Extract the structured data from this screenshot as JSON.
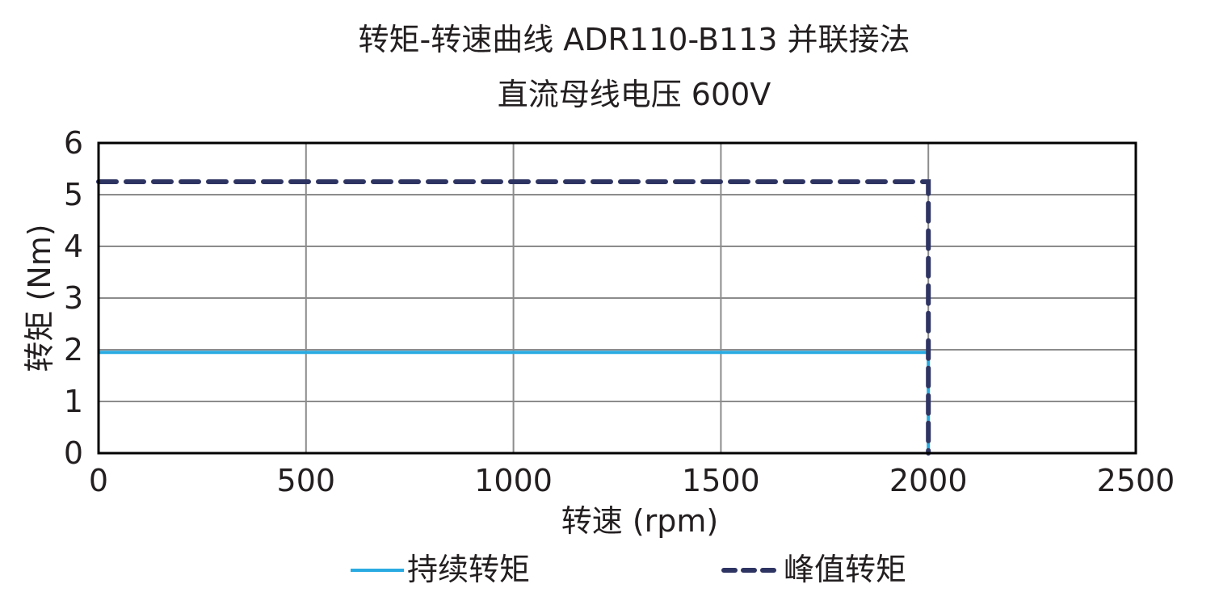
{
  "chart_data": {
    "type": "line",
    "title": "转矩-转速曲线 ADR110-B113 并联接法",
    "subtitle": "直流母线电压 600V",
    "xlabel": "转速 (rpm)",
    "ylabel": "转矩 (Nm)",
    "xlim": [
      0,
      2500
    ],
    "ylim": [
      0,
      6
    ],
    "xticks": [
      0,
      500,
      1000,
      1500,
      2000,
      2500
    ],
    "yticks": [
      0,
      1,
      2,
      3,
      4,
      5,
      6
    ],
    "grid": true,
    "legend_position": "bottom",
    "series": [
      {
        "name": "持续转矩",
        "style": "solid",
        "color": "#29abe2",
        "x": [
          0,
          2000,
          2000
        ],
        "y": [
          1.95,
          1.95,
          0
        ]
      },
      {
        "name": "峰值转矩",
        "style": "dashed",
        "color": "#2e3462",
        "x": [
          0,
          2000,
          2000
        ],
        "y": [
          5.25,
          5.25,
          0
        ]
      }
    ]
  }
}
